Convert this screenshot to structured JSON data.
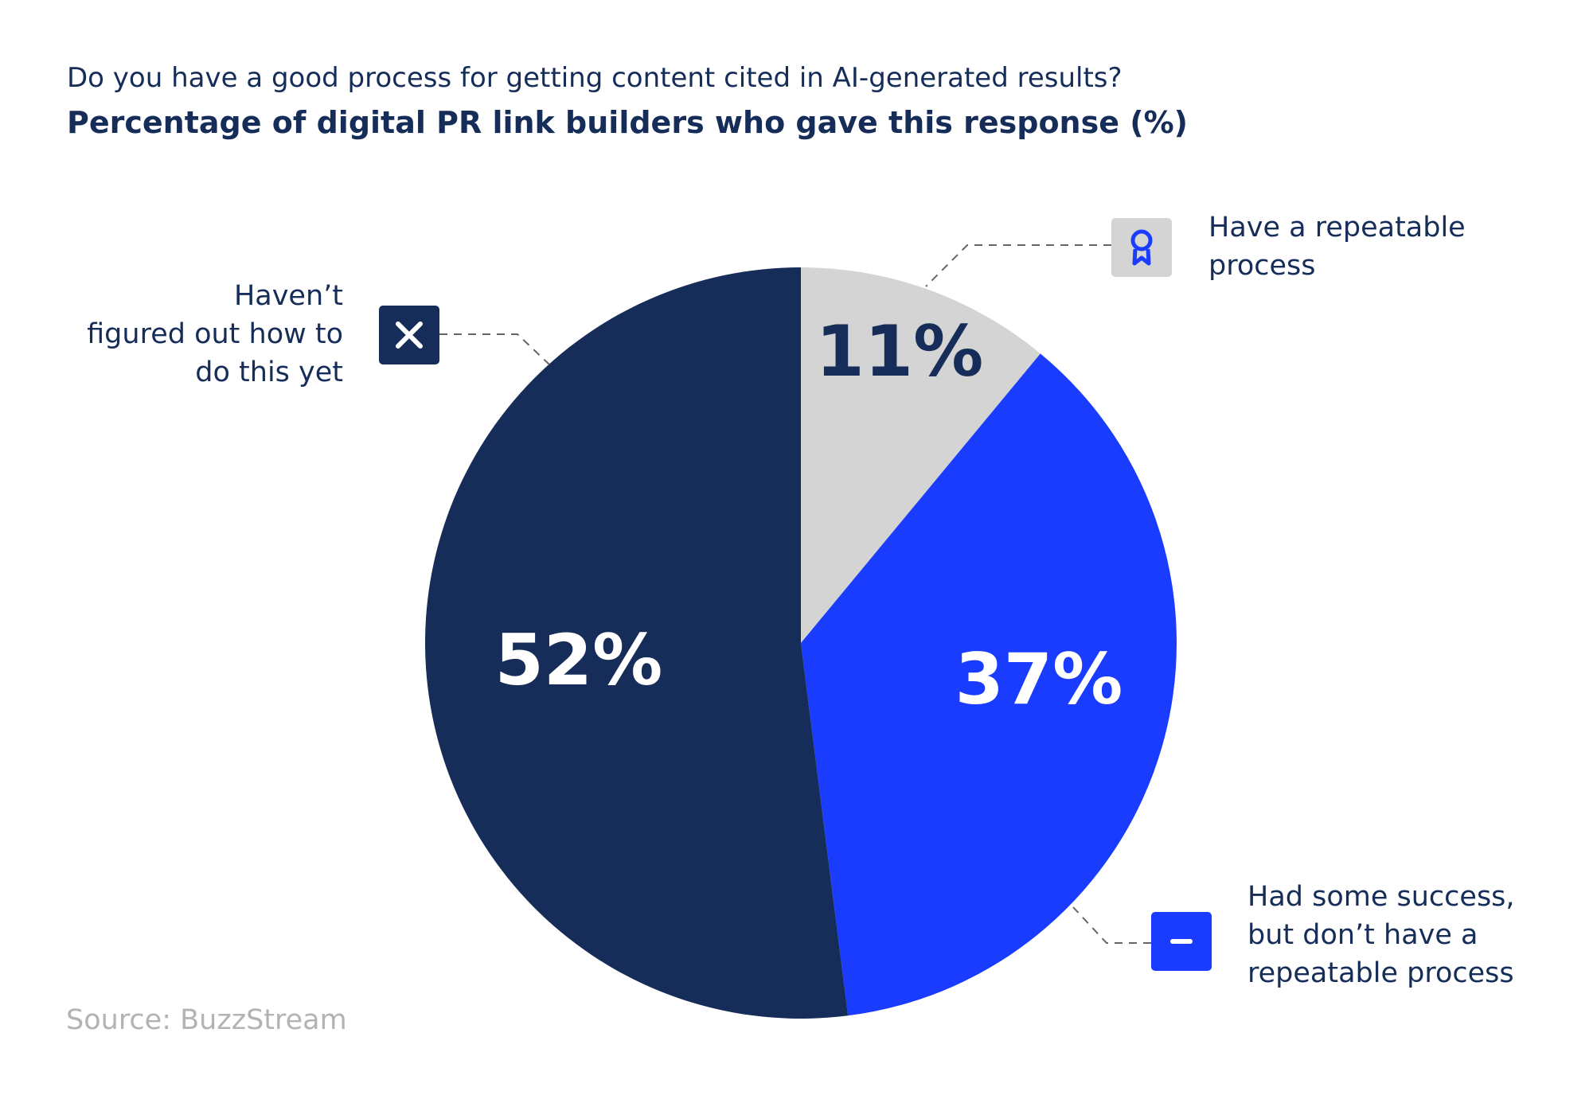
{
  "chart_data": {
    "type": "pie",
    "title": "Do you have a good process for getting content cited in AI-generated results?",
    "subtitle": "Percentage of digital PR link builders who gave this response (%)",
    "slices": [
      {
        "name": "Have a repeatable process",
        "value": 11,
        "label": "11%",
        "color": "#d4d4d4",
        "label_color": "#152d58",
        "icon": "award-ribbon-icon"
      },
      {
        "name": "Had some success, but don’t have a repeatable process",
        "value": 37,
        "label": "37%",
        "color": "#1a3cff",
        "label_color": "#ffffff",
        "icon": "minus-icon"
      },
      {
        "name": "Haven’t figured out how to do this yet",
        "value": 52,
        "label": "52%",
        "color": "#152d58",
        "label_color": "#ffffff",
        "icon": "x-icon"
      }
    ],
    "start": "top",
    "direction": "clockwise"
  },
  "labels": {
    "repeatable": [
      "Have a repeatable",
      "process"
    ],
    "some_success": [
      "Had some success,",
      "but don’t have a",
      "repeatable process"
    ],
    "not_yet": [
      "Haven’t",
      "figured out how to",
      "do this yet"
    ]
  },
  "source": "Source: BuzzStream"
}
